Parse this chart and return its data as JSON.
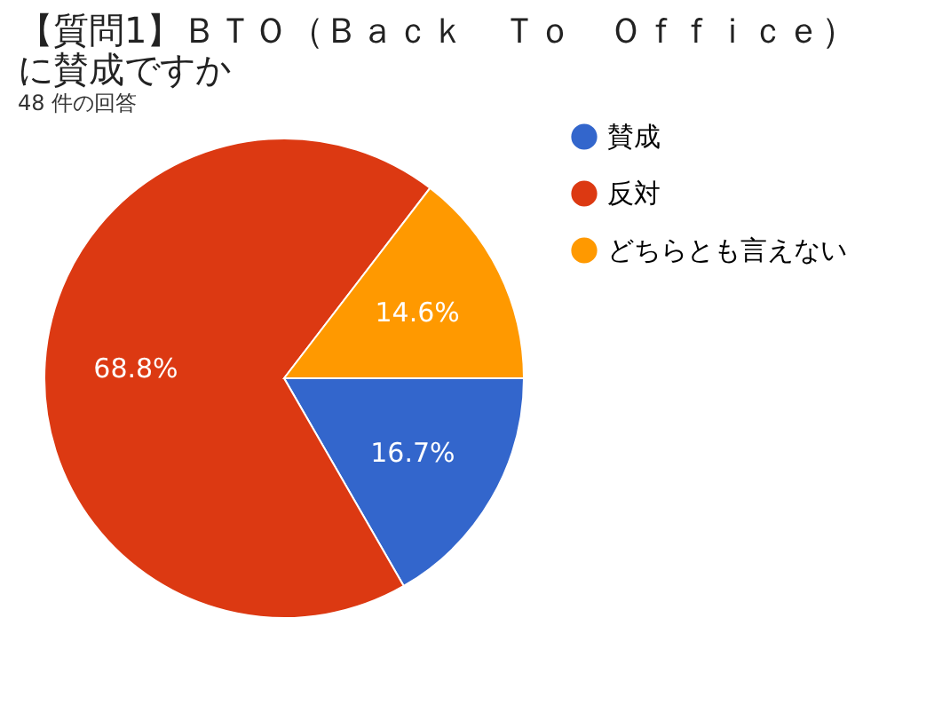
{
  "chart_data": {
    "type": "pie",
    "title": "【質問1】ＢＴＯ（Ｂａｃｋ　Ｔｏ　Ｏｆｆｉｃｅ）に賛成ですか",
    "subtitle": "48 件の回答",
    "categories": [
      "賛成",
      "反対",
      "どちらとも言えない"
    ],
    "values": [
      16.7,
      68.8,
      14.6
    ],
    "colors": [
      "#3366cc",
      "#dc3912",
      "#ff9900"
    ],
    "value_labels": [
      "16.7%",
      "68.8%",
      "14.6%"
    ],
    "legend": "right"
  }
}
